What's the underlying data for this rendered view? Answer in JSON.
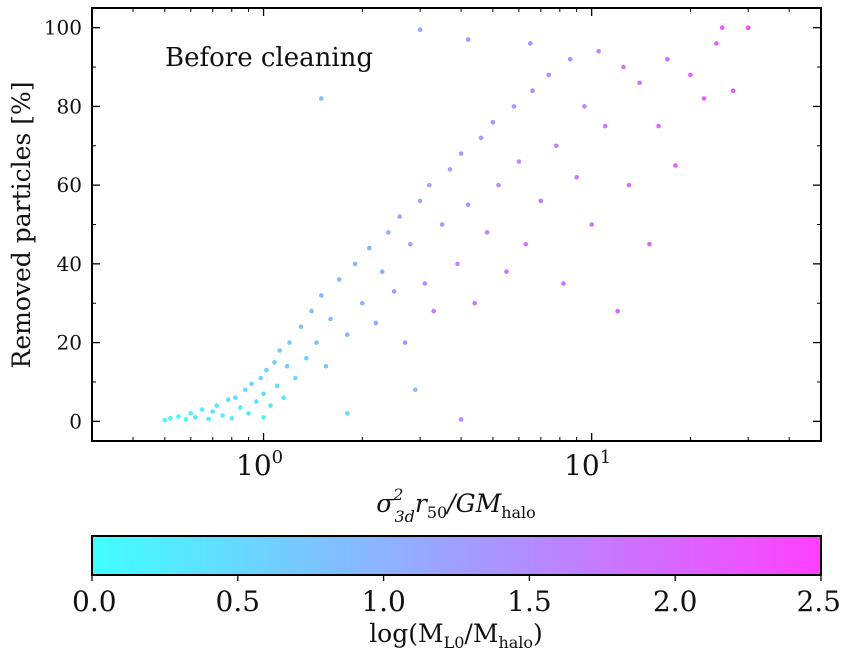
{
  "chart_data": [
    {
      "type": "scatter",
      "annotation": "Before  cleaning",
      "xlabel": {
        "main": "σ",
        "sup": "2",
        "sub": "3d",
        "mid": "r",
        "mid_sub": "50",
        "tail": "/GM",
        "tail_sub": "halo"
      },
      "ylabel": "Removed particles [%]",
      "x_scale": "log",
      "xlim": [
        0.3,
        50
      ],
      "ylim": [
        -5,
        105
      ],
      "y_ticks": [
        {
          "value": 0,
          "label": "0"
        },
        {
          "value": 20,
          "label": "20"
        },
        {
          "value": 40,
          "label": "40"
        },
        {
          "value": 60,
          "label": "60"
        },
        {
          "value": 80,
          "label": "80"
        },
        {
          "value": 100,
          "label": "100"
        }
      ],
      "x_major_ticks": [
        {
          "value": 1,
          "base": "10",
          "exp": "0"
        },
        {
          "value": 10,
          "base": "10",
          "exp": "1"
        }
      ],
      "grid": false,
      "colormap": {
        "name": "cool",
        "start": "#00ffff",
        "end": "#ff00ff"
      },
      "point_alpha": 0.75,
      "points": [
        [
          0.5,
          0.3,
          0.1
        ],
        [
          0.52,
          0.8,
          0.2
        ],
        [
          0.55,
          1.2,
          0.1
        ],
        [
          0.58,
          0.5,
          0.15
        ],
        [
          0.6,
          2.0,
          0.2
        ],
        [
          0.62,
          1.0,
          0.3
        ],
        [
          0.65,
          3.0,
          0.25
        ],
        [
          0.68,
          0.6,
          0.2
        ],
        [
          0.7,
          2.5,
          0.35
        ],
        [
          0.72,
          4.0,
          0.3
        ],
        [
          0.75,
          1.5,
          0.25
        ],
        [
          0.78,
          5.5,
          0.4
        ],
        [
          0.8,
          0.8,
          0.2
        ],
        [
          0.82,
          6.0,
          0.45
        ],
        [
          0.85,
          3.5,
          0.3
        ],
        [
          0.88,
          8.0,
          0.5
        ],
        [
          0.9,
          2.0,
          0.25
        ],
        [
          0.92,
          9.5,
          0.5
        ],
        [
          0.95,
          5.0,
          0.4
        ],
        [
          0.98,
          11.0,
          0.55
        ],
        [
          1.0,
          1.0,
          0.2
        ],
        [
          1.0,
          7.0,
          0.45
        ],
        [
          1.02,
          13.0,
          0.6
        ],
        [
          1.05,
          4.0,
          0.35
        ],
        [
          1.08,
          15.0,
          0.65
        ],
        [
          1.1,
          9.0,
          0.5
        ],
        [
          1.12,
          18.0,
          0.7
        ],
        [
          1.15,
          6.0,
          0.4
        ],
        [
          1.18,
          14.0,
          0.6
        ],
        [
          1.2,
          20.0,
          0.75
        ],
        [
          1.25,
          11.0,
          0.55
        ],
        [
          1.3,
          24.0,
          0.8
        ],
        [
          1.35,
          16.0,
          0.7
        ],
        [
          1.4,
          28.0,
          0.85
        ],
        [
          1.45,
          20.0,
          0.8
        ],
        [
          1.5,
          32.0,
          0.9
        ],
        [
          1.55,
          14.0,
          0.75
        ],
        [
          1.6,
          26.0,
          0.95
        ],
        [
          1.7,
          36.0,
          0.95
        ],
        [
          1.8,
          22.0,
          1.0
        ],
        [
          1.9,
          40.0,
          1.0
        ],
        [
          2.0,
          30.0,
          1.05
        ],
        [
          2.1,
          44.0,
          1.0
        ],
        [
          2.2,
          25.0,
          1.2
        ],
        [
          2.3,
          38.0,
          1.1
        ],
        [
          2.4,
          48.0,
          1.05
        ],
        [
          2.5,
          33.0,
          1.3
        ],
        [
          2.6,
          52.0,
          1.1
        ],
        [
          2.7,
          20.0,
          1.4
        ],
        [
          2.8,
          45.0,
          1.2
        ],
        [
          3.0,
          56.0,
          1.15
        ],
        [
          3.1,
          35.0,
          1.5
        ],
        [
          3.2,
          60.0,
          1.2
        ],
        [
          3.3,
          28.0,
          1.6
        ],
        [
          3.5,
          50.0,
          1.3
        ],
        [
          3.7,
          64.0,
          1.25
        ],
        [
          3.9,
          40.0,
          1.6
        ],
        [
          4.0,
          68.0,
          1.3
        ],
        [
          4.2,
          55.0,
          1.45
        ],
        [
          4.4,
          30.0,
          1.7
        ],
        [
          4.6,
          72.0,
          1.35
        ],
        [
          4.8,
          48.0,
          1.6
        ],
        [
          5.0,
          76.0,
          1.4
        ],
        [
          5.2,
          60.0,
          1.5
        ],
        [
          5.5,
          38.0,
          1.8
        ],
        [
          5.8,
          80.0,
          1.45
        ],
        [
          6.0,
          66.0,
          1.55
        ],
        [
          6.3,
          45.0,
          1.8
        ],
        [
          6.6,
          84.0,
          1.5
        ],
        [
          7.0,
          56.0,
          1.7
        ],
        [
          7.4,
          88.0,
          1.5
        ],
        [
          7.8,
          70.0,
          1.65
        ],
        [
          8.2,
          35.0,
          1.9
        ],
        [
          8.6,
          92.0,
          1.55
        ],
        [
          9.0,
          62.0,
          1.75
        ],
        [
          9.5,
          80.0,
          1.6
        ],
        [
          10.0,
          50.0,
          1.85
        ],
        [
          10.5,
          94.0,
          1.6
        ],
        [
          11.0,
          75.0,
          1.7
        ],
        [
          12.0,
          28.0,
          2.0
        ],
        [
          12.5,
          90.0,
          1.7
        ],
        [
          13.0,
          60.0,
          1.9
        ],
        [
          14.0,
          86.0,
          1.8
        ],
        [
          15.0,
          45.0,
          2.0
        ],
        [
          16.0,
          75.0,
          1.95
        ],
        [
          17.0,
          92.0,
          1.85
        ],
        [
          18.0,
          65.0,
          2.1
        ],
        [
          20.0,
          88.0,
          2.0
        ],
        [
          22.0,
          82.0,
          2.1
        ],
        [
          24.0,
          96.0,
          2.05
        ],
        [
          25.0,
          100.0,
          2.1
        ],
        [
          27.0,
          84.0,
          2.2
        ],
        [
          30.0,
          100.0,
          2.3
        ],
        [
          3.0,
          99.5,
          1.2
        ],
        [
          4.2,
          97.0,
          1.4
        ],
        [
          6.5,
          96.0,
          1.45
        ],
        [
          1.8,
          2.0,
          0.5
        ],
        [
          2.9,
          8.0,
          0.8
        ],
        [
          4.0,
          0.5,
          1.5
        ],
        [
          1.5,
          82.0,
          0.9
        ]
      ]
    },
    {
      "type": "colorbar",
      "label": "log(M",
      "label_sub1": "L0",
      "label_mid": "/M",
      "label_sub2": "halo",
      "label_close": ")",
      "range": [
        0.0,
        2.5
      ],
      "ticks": [
        {
          "value": 0.0,
          "label": "0.0"
        },
        {
          "value": 0.5,
          "label": "0.5"
        },
        {
          "value": 1.0,
          "label": "1.0"
        },
        {
          "value": 1.5,
          "label": "1.5"
        },
        {
          "value": 2.0,
          "label": "2.0"
        },
        {
          "value": 2.5,
          "label": "2.5"
        }
      ]
    }
  ]
}
